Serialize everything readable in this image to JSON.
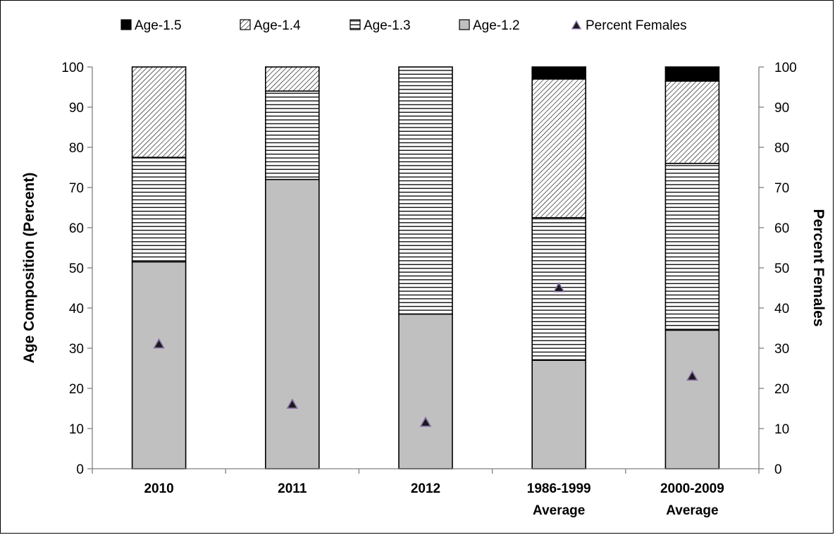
{
  "chart_data": {
    "type": "bar",
    "stacked": true,
    "categories": [
      [
        "2010"
      ],
      [
        "2011"
      ],
      [
        "2012"
      ],
      [
        "1986-1999",
        "Average"
      ],
      [
        "2000-2009",
        "Average"
      ]
    ],
    "series": [
      {
        "name": "Age-1.2",
        "values": [
          51.5,
          72,
          38.5,
          27,
          34.5
        ],
        "fill": "solid-gray",
        "color": "#c0c0c0"
      },
      {
        "name": "Age-1.3",
        "values": [
          26,
          22,
          61.5,
          35.5,
          41.5
        ],
        "fill": "horizontal-lines",
        "color": "#000000"
      },
      {
        "name": "Age-1.4",
        "values": [
          22.5,
          6,
          0,
          34.5,
          20.5
        ],
        "fill": "diagonal-hatch",
        "color": "#000000"
      },
      {
        "name": "Age-1.5",
        "values": [
          0,
          0,
          0,
          3,
          3.5
        ],
        "fill": "solid-black",
        "color": "#000000"
      }
    ],
    "markers": {
      "name": "Percent Females",
      "values": [
        31,
        16,
        11.5,
        45,
        23
      ],
      "shape": "triangle",
      "color": "#1a1a1a",
      "outline": "#8b6fa8",
      "axis": "right"
    },
    "legend": {
      "position": "top",
      "order": [
        "Age-1.5",
        "Age-1.4",
        "Age-1.3",
        "Age-1.2",
        "Percent Females"
      ]
    },
    "ylabel": "Age Composition (Percent)",
    "y2label": "Percent Females",
    "ylim": [
      0,
      100
    ],
    "y2lim": [
      0,
      100
    ],
    "yticks": [
      "0",
      "10",
      "20",
      "30",
      "40",
      "50",
      "60",
      "70",
      "80",
      "90",
      "100"
    ],
    "grid": false
  }
}
